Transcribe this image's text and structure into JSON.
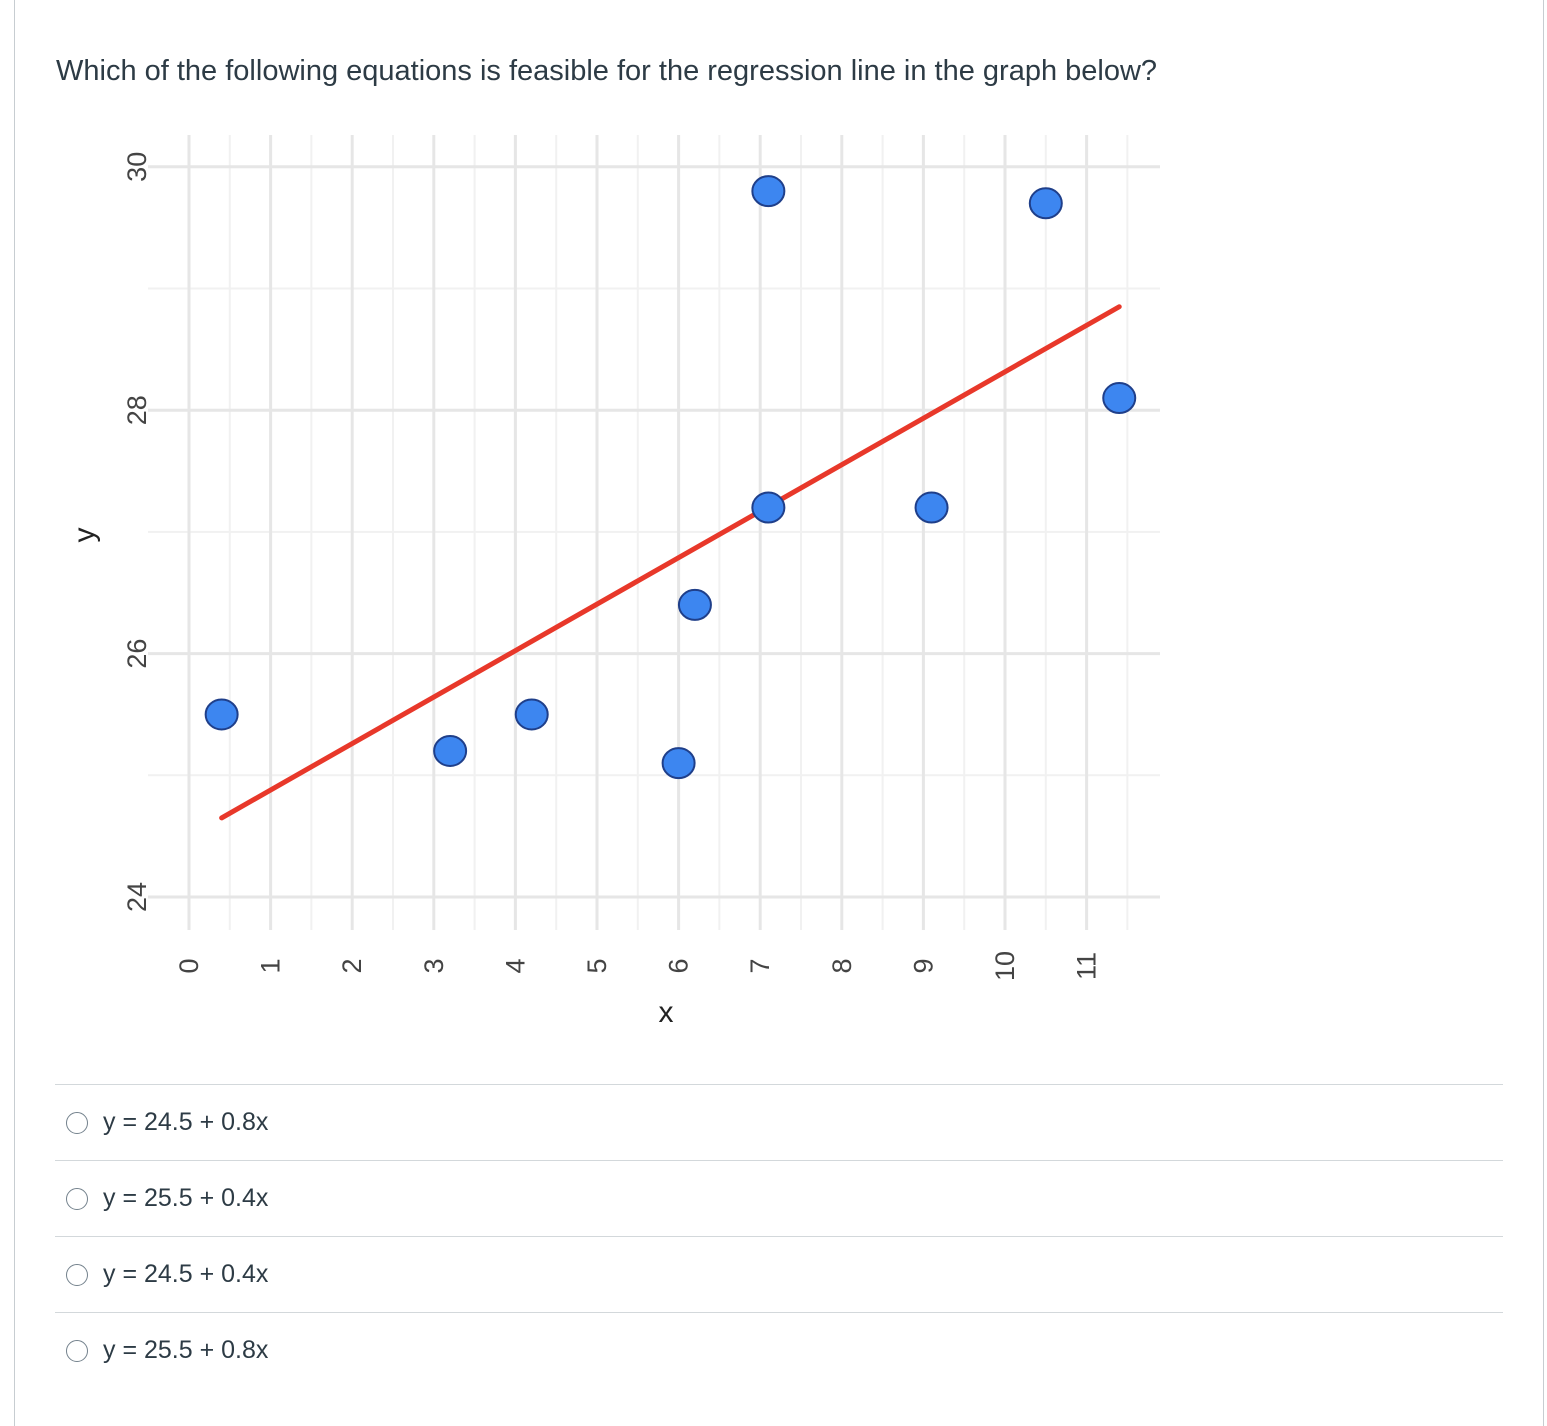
{
  "question": {
    "text": "Which of the following equations is feasible for the regression line in the graph below?"
  },
  "chart_data": {
    "type": "scatter",
    "title": "",
    "xlabel": "x",
    "ylabel": "y",
    "xlim": [
      0,
      11.8
    ],
    "ylim": [
      24,
      30
    ],
    "x_ticks": [
      0,
      1,
      2,
      3,
      4,
      5,
      6,
      7,
      8,
      9,
      10,
      11
    ],
    "x_tick_labels": [
      "0",
      "1",
      "2",
      "3",
      "4",
      "5",
      "6",
      "7",
      "8",
      "9",
      "10",
      "11"
    ],
    "y_ticks": [
      24,
      26,
      28,
      30
    ],
    "y_tick_labels": [
      "24",
      "26",
      "28",
      "30"
    ],
    "grid": true,
    "legend": "none",
    "series": [
      {
        "kind": "points",
        "color": "#3d86f0",
        "stroke": "#1f3f8a",
        "points": [
          {
            "x": 0.4,
            "y": 25.5
          },
          {
            "x": 3.2,
            "y": 25.2
          },
          {
            "x": 4.2,
            "y": 25.5
          },
          {
            "x": 6.0,
            "y": 25.1
          },
          {
            "x": 6.2,
            "y": 26.4
          },
          {
            "x": 7.1,
            "y": 29.8
          },
          {
            "x": 7.1,
            "y": 27.2
          },
          {
            "x": 9.1,
            "y": 27.2
          },
          {
            "x": 10.5,
            "y": 29.7
          },
          {
            "x": 11.4,
            "y": 28.1
          }
        ]
      },
      {
        "kind": "regression-line",
        "color": "#e8382a",
        "points": [
          {
            "x": 0.4,
            "y": 24.65
          },
          {
            "x": 11.4,
            "y": 28.85
          }
        ]
      }
    ]
  },
  "answers": [
    {
      "label": "y = 24.5 + 0.8x"
    },
    {
      "label": "y = 25.5 + 0.4x"
    },
    {
      "label": "y = 24.5 + 0.4x"
    },
    {
      "label": "y = 25.5 + 0.8x"
    }
  ]
}
